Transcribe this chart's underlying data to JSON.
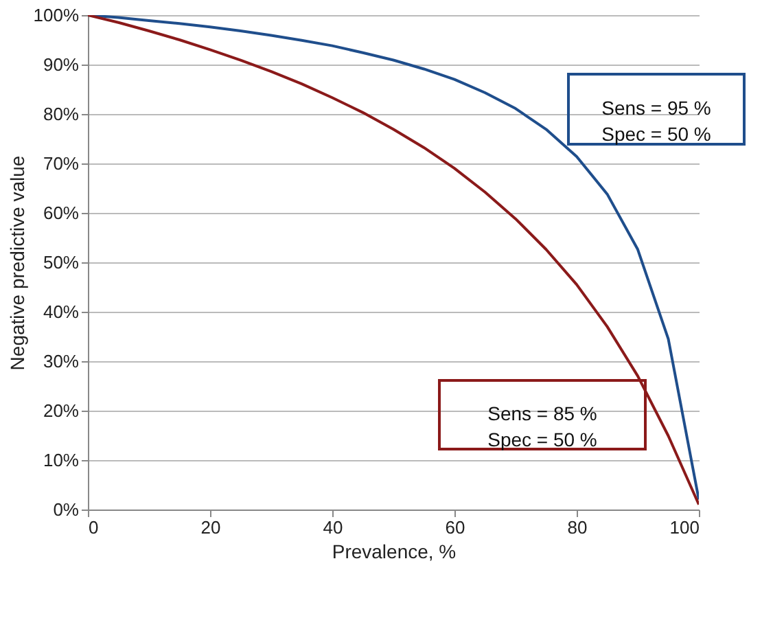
{
  "chart_data": {
    "type": "line",
    "xlabel": "Prevalence, %",
    "ylabel": "Negative predictive value",
    "x": [
      0,
      5,
      10,
      15,
      20,
      25,
      30,
      35,
      40,
      45,
      50,
      55,
      60,
      65,
      70,
      75,
      80,
      85,
      90,
      95,
      100
    ],
    "series": [
      {
        "color": "#1f4e8c",
        "values": [
          100,
          99.5,
          98.9,
          98.3,
          97.6,
          96.8,
          95.9,
          94.9,
          93.8,
          92.4,
          90.9,
          89.1,
          87.0,
          84.3,
          81.1,
          76.9,
          71.4,
          63.8,
          52.6,
          34.5,
          2
        ]
      },
      {
        "color": "#8b1a1a",
        "values": [
          100,
          98.5,
          96.8,
          95.0,
          93.0,
          90.9,
          88.6,
          86.1,
          83.3,
          80.3,
          76.9,
          73.2,
          69.0,
          64.2,
          58.8,
          52.6,
          45.5,
          37.0,
          27.0,
          14.9,
          1
        ]
      }
    ],
    "annotations": [
      "Sens = 95 %\nSpec = 50 %",
      "Sens = 85 %\nSpec = 50 %"
    ],
    "xlim": [
      0,
      100
    ],
    "xticks": [
      0,
      20,
      40,
      60,
      80,
      100
    ],
    "ylim": [
      0,
      100
    ],
    "yticks": [
      {
        "value": 0,
        "label": "0%"
      },
      {
        "value": 10,
        "label": "10%"
      },
      {
        "value": 20,
        "label": "20%"
      },
      {
        "value": 30,
        "label": "30%"
      },
      {
        "value": 40,
        "label": "40%"
      },
      {
        "value": 50,
        "label": "50%"
      },
      {
        "value": 60,
        "label": "60%"
      },
      {
        "value": 70,
        "label": "70%"
      },
      {
        "value": 80,
        "label": "80%"
      },
      {
        "value": 90,
        "label": "90%"
      },
      {
        "value": 100,
        "label": "100%"
      }
    ],
    "grid": "y",
    "legend": false,
    "marker": "none",
    "line_style": "solid"
  }
}
